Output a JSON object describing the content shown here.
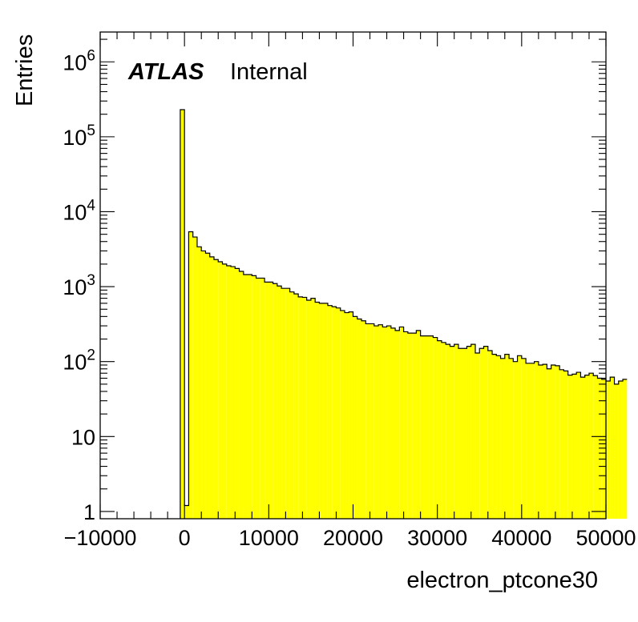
{
  "chart_data": {
    "type": "histogram",
    "title": "",
    "xlabel": "electron_ptcone30",
    "ylabel": "Entries",
    "annotation": {
      "experiment": "ATLAS",
      "status": "Internal"
    },
    "x_scale": "linear",
    "y_scale": "log",
    "xlim": [
      -10000,
      50000
    ],
    "ylim": [
      0.8,
      2500000
    ],
    "fill_color": "#ffff00",
    "line_color": "#000000",
    "x_ticks": [
      {
        "value": -10000,
        "label": "−10000"
      },
      {
        "value": 0,
        "label": "0"
      },
      {
        "value": 10000,
        "label": "10000"
      },
      {
        "value": 20000,
        "label": "20000"
      },
      {
        "value": 30000,
        "label": "30000"
      },
      {
        "value": 40000,
        "label": "40000"
      },
      {
        "value": 50000,
        "label": "50000"
      }
    ],
    "y_ticks": [
      {
        "value": 1,
        "base": "1",
        "exp": ""
      },
      {
        "value": 10,
        "base": "10",
        "exp": ""
      },
      {
        "value": 100,
        "base": "10",
        "exp": "2"
      },
      {
        "value": 1000,
        "base": "10",
        "exp": "3"
      },
      {
        "value": 10000,
        "base": "10",
        "exp": "4"
      },
      {
        "value": 100000,
        "base": "10",
        "exp": "5"
      },
      {
        "value": 1000000,
        "base": "10",
        "exp": "6"
      }
    ],
    "bin_width": 500,
    "bins_start": -500,
    "values": [
      230000,
      1.2,
      5400,
      4600,
      3400,
      3000,
      2800,
      2500,
      2300,
      2150,
      2000,
      1900,
      1850,
      1750,
      1600,
      1450,
      1450,
      1400,
      1300,
      1300,
      1150,
      1150,
      1100,
      1020,
      950,
      950,
      850,
      800,
      730,
      720,
      660,
      700,
      620,
      600,
      600,
      560,
      540,
      520,
      480,
      450,
      460,
      400,
      370,
      350,
      320,
      320,
      300,
      310,
      290,
      300,
      280,
      260,
      290,
      250,
      240,
      240,
      260,
      220,
      220,
      220,
      210,
      190,
      180,
      170,
      160,
      170,
      150,
      150,
      160,
      170,
      130,
      150,
      160,
      140,
      125,
      120,
      110,
      125,
      110,
      100,
      120,
      110,
      95,
      95,
      100,
      90,
      92,
      80,
      90,
      88,
      78,
      75,
      66,
      68,
      72,
      62,
      66,
      70,
      65,
      60,
      58,
      55,
      62,
      50,
      55,
      58
    ]
  }
}
